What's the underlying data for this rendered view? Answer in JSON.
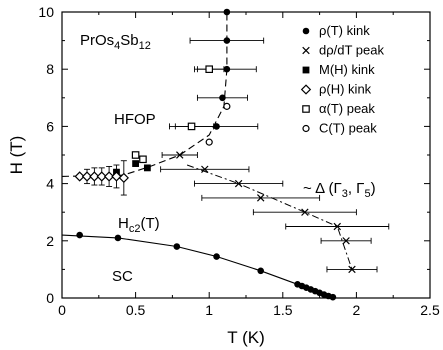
{
  "chart_data": {
    "type": "scatter",
    "title": "",
    "xlabel": "T (K)",
    "ylabel": "H (T)",
    "xlim": [
      0,
      2.5
    ],
    "ylim": [
      0,
      10
    ],
    "xticks": [
      0,
      0.5,
      1,
      1.5,
      2,
      2.5
    ],
    "yticks": [
      0,
      2,
      4,
      6,
      8,
      10
    ],
    "xtick_labels": [
      "0",
      "0.5",
      "1",
      "1.5",
      "2",
      "2.5"
    ],
    "ytick_labels": [
      "0",
      "2",
      "4",
      "6",
      "8",
      "10"
    ],
    "grid": false,
    "legend_position": "top-right",
    "annotations": {
      "material": {
        "base": "PrOs",
        "sub1": "4",
        "mid": "Sb",
        "sub2": "12"
      },
      "hfop": "HFOP",
      "hc2": {
        "base": "H",
        "sub": "c2",
        "tail": "(T)"
      },
      "sc": "SC",
      "delta": "~ Δ (Γ",
      "delta_sub1": "3",
      "delta_mid": ", Γ",
      "delta_sub2": "5",
      "delta_end": ")"
    },
    "series": [
      {
        "name": "ρ(T) kink",
        "marker": "filled-circle",
        "points": [
          {
            "x": 1.12,
            "y": 10.0,
            "xerr": 0
          },
          {
            "x": 1.12,
            "y": 9.0,
            "xerr": 0.25
          },
          {
            "x": 1.12,
            "y": 8.0,
            "xerr": 0.2
          },
          {
            "x": 1.09,
            "y": 7.0,
            "xerr": 0.17
          },
          {
            "x": 1.05,
            "y": 6.0,
            "xerr": 0.28
          }
        ]
      },
      {
        "name": "dρ/dT peak",
        "marker": "cross",
        "points": [
          {
            "x": 0.8,
            "y": 5.0,
            "xerr": 0.12
          },
          {
            "x": 0.97,
            "y": 4.5,
            "xerr": 0.3
          },
          {
            "x": 1.2,
            "y": 4.0,
            "xerr": 0.3
          },
          {
            "x": 1.35,
            "y": 3.5,
            "xerr": 0.4
          },
          {
            "x": 1.65,
            "y": 3.0,
            "xerr": 0.35
          },
          {
            "x": 1.87,
            "y": 2.5,
            "xerr": 0.35
          },
          {
            "x": 1.93,
            "y": 2.0,
            "xerr": 0.17
          },
          {
            "x": 1.97,
            "y": 1.0,
            "xerr": 0.17
          }
        ]
      },
      {
        "name": "M(H) kink",
        "marker": "filled-square",
        "points": [
          {
            "x": 0.5,
            "y": 4.7,
            "xerr": 0
          },
          {
            "x": 0.58,
            "y": 4.55,
            "xerr": 0
          },
          {
            "x": 0.37,
            "y": 4.4,
            "xerr": 0
          }
        ]
      },
      {
        "name": "ρ(H) kink",
        "marker": "open-diamond",
        "points": [
          {
            "x": 0.12,
            "y": 4.25,
            "yerr": 0
          },
          {
            "x": 0.17,
            "y": 4.25,
            "yerr": 0.25
          },
          {
            "x": 0.22,
            "y": 4.25,
            "yerr": 0.3
          },
          {
            "x": 0.27,
            "y": 4.25,
            "yerr": 0.3
          },
          {
            "x": 0.32,
            "y": 4.25,
            "yerr": 0.35
          },
          {
            "x": 0.37,
            "y": 4.25,
            "yerr": 0.4
          },
          {
            "x": 0.42,
            "y": 4.2,
            "yerr": 0.6
          }
        ]
      },
      {
        "name": "α(T) peak",
        "marker": "open-square",
        "points": [
          {
            "x": 0.5,
            "y": 5.0,
            "xerr": 0
          },
          {
            "x": 0.55,
            "y": 4.85,
            "xerr": 0
          },
          {
            "x": 0.88,
            "y": 6.0,
            "xerr": 0.15
          },
          {
            "x": 1.0,
            "y": 8.0,
            "xerr": 0.1
          }
        ]
      },
      {
        "name": "C(T) peak",
        "marker": "open-circle",
        "points": [
          {
            "x": 1.0,
            "y": 5.45
          },
          {
            "x": 1.12,
            "y": 6.7
          }
        ]
      },
      {
        "name": "",
        "marker": "filled-circle",
        "points": [
          {
            "x": 0.12,
            "y": 2.2
          },
          {
            "x": 0.38,
            "y": 2.1
          },
          {
            "x": 0.78,
            "y": 1.8
          },
          {
            "x": 1.05,
            "y": 1.45
          },
          {
            "x": 1.35,
            "y": 0.95
          },
          {
            "x": 1.6,
            "y": 0.48
          },
          {
            "x": 1.63,
            "y": 0.42
          },
          {
            "x": 1.66,
            "y": 0.36
          },
          {
            "x": 1.69,
            "y": 0.3
          },
          {
            "x": 1.72,
            "y": 0.24
          },
          {
            "x": 1.75,
            "y": 0.18
          },
          {
            "x": 1.78,
            "y": 0.12
          },
          {
            "x": 1.81,
            "y": 0.07
          },
          {
            "x": 1.84,
            "y": 0.03
          }
        ]
      }
    ],
    "curves": {
      "hc2": [
        [
          0,
          2.2
        ],
        [
          0.38,
          2.1
        ],
        [
          0.78,
          1.8
        ],
        [
          1.05,
          1.45
        ],
        [
          1.35,
          0.95
        ],
        [
          1.6,
          0.48
        ],
        [
          1.75,
          0.2
        ],
        [
          1.86,
          0
        ]
      ],
      "hfop_boundary": [
        [
          0.0,
          4.25
        ],
        [
          0.42,
          4.3
        ],
        [
          0.6,
          4.6
        ],
        [
          0.8,
          5.0
        ],
        [
          1.0,
          5.7
        ],
        [
          1.1,
          6.7
        ],
        [
          1.12,
          8.0
        ],
        [
          1.12,
          10.0
        ]
      ],
      "delta_line": [
        [
          0.85,
          4.65
        ],
        [
          1.2,
          4.0
        ],
        [
          1.65,
          3.0
        ],
        [
          1.87,
          2.5
        ],
        [
          1.97,
          1.0
        ]
      ]
    }
  }
}
